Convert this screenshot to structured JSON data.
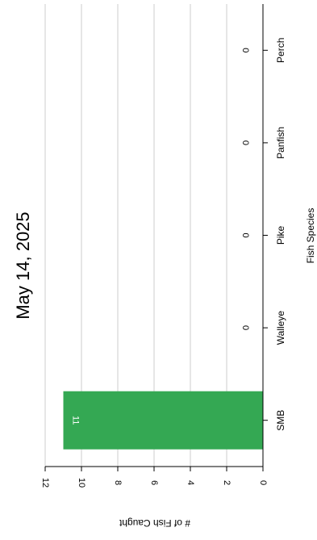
{
  "chart_data": {
    "type": "bar",
    "title": "May 14, 2025",
    "xlabel": "Fish Species",
    "ylabel": "# of Fish Caught",
    "categories": [
      "SMB",
      "Walleye",
      "Pike",
      "Panfish",
      "Perch"
    ],
    "values": [
      11,
      0,
      0,
      0,
      0
    ],
    "data_labels": [
      "11",
      "0",
      "0",
      "0",
      "0"
    ],
    "ylim": [
      0,
      12
    ],
    "yticks": [
      0,
      2,
      4,
      6,
      8,
      10,
      12
    ],
    "grid": true,
    "orientation": "rotated-90-clockwise",
    "bar_color": "#34a853"
  }
}
